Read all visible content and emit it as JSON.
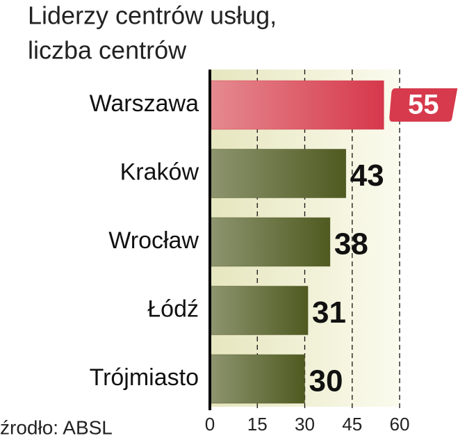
{
  "chart_data": {
    "type": "bar",
    "orientation": "horizontal",
    "title": "Liderzy centrów usług,",
    "subtitle": "liczba centrów",
    "source": "źrodło: ABSL",
    "categories": [
      "Warszawa",
      "Kraków",
      "Wrocław",
      "Łódź",
      "Trójmiasto"
    ],
    "values": [
      55,
      43,
      38,
      31,
      30
    ],
    "colors": [
      "#d63a4c",
      "#58612a",
      "#58612a",
      "#58612a",
      "#58612a"
    ],
    "xlim": [
      0,
      60
    ],
    "xticks": [
      0,
      15,
      30,
      45,
      60
    ],
    "grid": true
  }
}
